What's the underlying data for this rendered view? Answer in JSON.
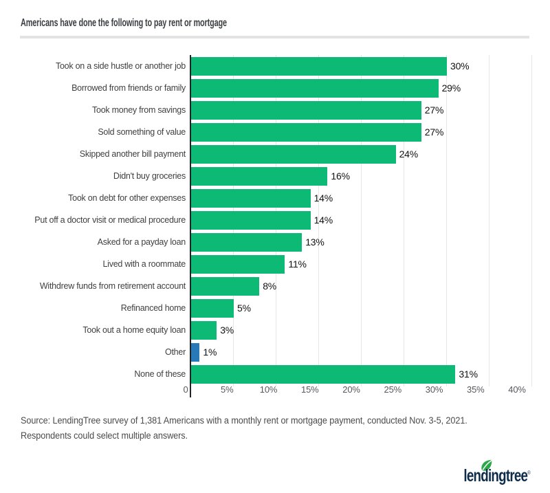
{
  "chart_data": {
    "type": "bar",
    "orientation": "horizontal",
    "title": "Americans have done the following to pay rent or mortgage",
    "categories": [
      "Took on a side hustle or another job",
      "Borrowed from friends or family",
      "Took money from savings",
      "Sold something of value",
      "Skipped another bill payment",
      "Didn't buy groceries",
      "Took on debt for other expenses",
      "Put off a doctor visit or medical procedure",
      "Asked for a payday loan",
      "Lived with a roommate",
      "Withdrew funds from retirement account",
      "Refinanced home",
      "Took out a home equity loan",
      "Other",
      "None of these"
    ],
    "values": [
      30,
      29,
      27,
      27,
      24,
      16,
      14,
      14,
      13,
      11,
      8,
      5,
      3,
      1,
      31
    ],
    "value_labels": [
      "30%",
      "29%",
      "27%",
      "27%",
      "24%",
      "16%",
      "14%",
      "14%",
      "13%",
      "11%",
      "8%",
      "5%",
      "3%",
      "1%",
      "31%"
    ],
    "bar_colors": [
      "#0cba76",
      "#0cba76",
      "#0cba76",
      "#0cba76",
      "#0cba76",
      "#0cba76",
      "#0cba76",
      "#0cba76",
      "#0cba76",
      "#0cba76",
      "#0cba76",
      "#0cba76",
      "#0cba76",
      "#2879b7",
      "#0cba76"
    ],
    "xlabel": "",
    "ylabel": "",
    "xlim": [
      0,
      40
    ],
    "xticks": [
      0,
      5,
      10,
      15,
      20,
      25,
      30,
      35,
      40
    ],
    "xtick_labels": [
      "0",
      "5%",
      "10%",
      "15%",
      "20%",
      "25%",
      "30%",
      "35%",
      "40%"
    ],
    "grid": "vertical gridlines on",
    "legend": "none"
  },
  "colors": {
    "bar_green": "#0cba76",
    "bar_blue": "#2879b7",
    "axis": "#202327",
    "gridline": "#e6e6e6",
    "logo_navy": "#0d2b4a",
    "leaf_green": "#2ba84a"
  },
  "source": {
    "line1": "Source: LendingTree survey of 1,381 Americans with a monthly rent or mortgage payment, conducted Nov. 3-5, 2021.",
    "line2": "Respondents could select multiple answers."
  },
  "logo": {
    "wordmark": "lendingtree",
    "registered": "®",
    "icon": "leaf-icon"
  }
}
